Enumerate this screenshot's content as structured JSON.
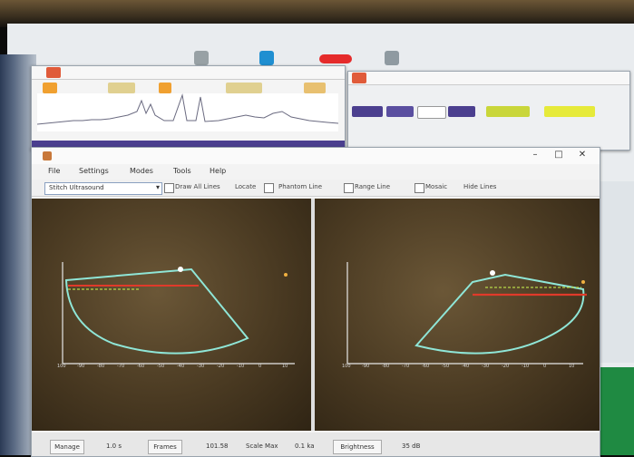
{
  "main_window": {
    "menu": [
      "File",
      "Settings",
      "Modes",
      "Tools",
      "Help"
    ],
    "source_select": "Stitch Ultrasound",
    "controls": [
      "Draw All Lines",
      "Locate",
      "Phantom Line",
      "Range Line",
      "Mosaic",
      "Hide Lines"
    ]
  },
  "bottom_bar": {
    "buttons": [
      "Manage",
      "Frames",
      "Brightness"
    ],
    "fields": [
      "1.0 s",
      "101.58",
      "Scale Max",
      "0.1 ka",
      "35 dB"
    ]
  },
  "panels": {
    "left": {
      "tick_labels_x": [
        "100",
        "-90",
        "-80",
        "-70",
        "-60",
        "-50",
        "-40",
        "-30",
        "-20",
        "-10",
        "0",
        "10"
      ]
    },
    "right": {
      "tick_labels_x": [
        "100",
        "-90",
        "-80",
        "-70",
        "-60",
        "-50",
        "-40",
        "-30",
        "-20",
        "-10",
        "0",
        "10"
      ]
    }
  },
  "colors": {
    "accent_purple": "#4b3f8f",
    "green": "#1f8a42",
    "red_line": "#e03a2a",
    "cyan_curve": "#8fe6d7"
  }
}
